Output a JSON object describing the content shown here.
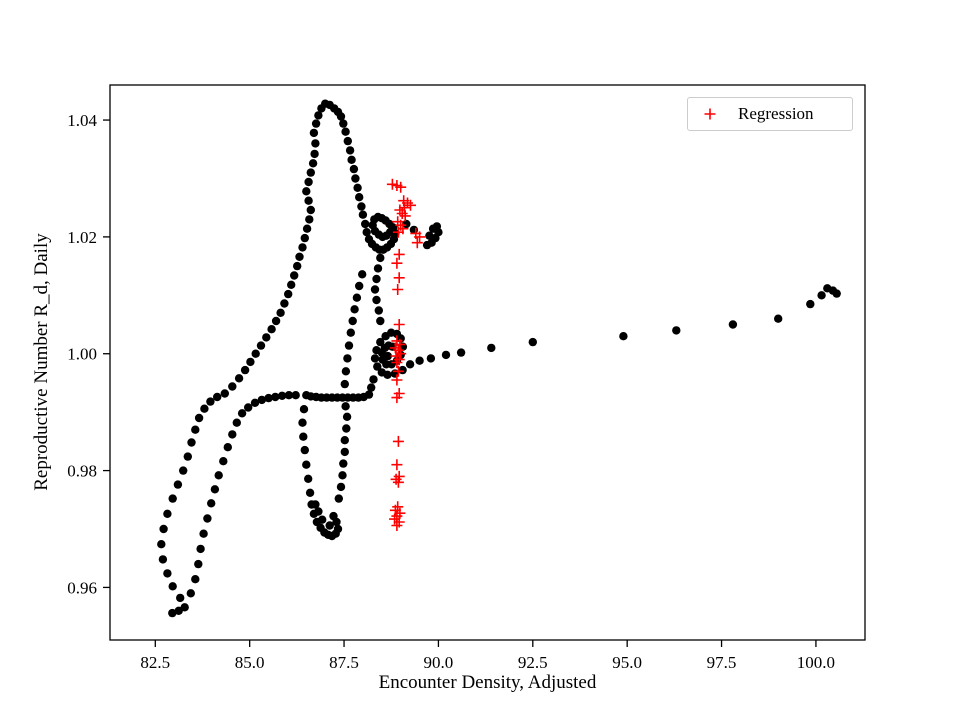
{
  "figure": {
    "background": "#ffffff",
    "frame_color": "#000000"
  },
  "chart_data": {
    "type": "scatter",
    "title": "",
    "xlabel": "Encounter Density, Adjusted",
    "ylabel": "Reproductive Number R_d, Daily",
    "xlim": [
      81.3,
      101.3
    ],
    "ylim": [
      0.951,
      1.046
    ],
    "grid": false,
    "x_ticks": [
      {
        "value": 82.5,
        "label": "82.5"
      },
      {
        "value": 85.0,
        "label": "85.0"
      },
      {
        "value": 87.5,
        "label": "87.5"
      },
      {
        "value": 90.0,
        "label": "90.0"
      },
      {
        "value": 92.5,
        "label": "92.5"
      },
      {
        "value": 95.0,
        "label": "95.0"
      },
      {
        "value": 97.5,
        "label": "97.5"
      },
      {
        "value": 100.0,
        "label": "100.0"
      }
    ],
    "y_ticks": [
      {
        "value": 0.96,
        "label": "0.96"
      },
      {
        "value": 0.98,
        "label": "0.98"
      },
      {
        "value": 1.0,
        "label": "1.00"
      },
      {
        "value": 1.02,
        "label": "1.02"
      },
      {
        "value": 1.04,
        "label": "1.04"
      }
    ],
    "legend": {
      "position": "upper right",
      "entries": [
        {
          "label": "Regression",
          "marker": "plus",
          "color": "#ff0000"
        }
      ]
    },
    "series": [
      {
        "name": "trajectory",
        "marker": "circle",
        "color": "#000000",
        "points": [
          [
            100.55,
            1.0103
          ],
          [
            100.45,
            1.0108
          ],
          [
            100.3,
            1.0112
          ],
          [
            100.15,
            1.01
          ],
          [
            99.85,
            1.0085
          ],
          [
            99.0,
            1.006
          ],
          [
            97.8,
            1.005
          ],
          [
            96.3,
            1.004
          ],
          [
            94.9,
            1.003
          ],
          [
            92.5,
            1.002
          ],
          [
            91.4,
            1.001
          ],
          [
            90.6,
            1.0002
          ],
          [
            90.2,
            0.9998
          ],
          [
            89.8,
            0.9992
          ],
          [
            89.5,
            0.9988
          ],
          [
            89.25,
            0.9982
          ],
          [
            89.05,
            0.9972
          ],
          [
            88.85,
            0.9966
          ],
          [
            88.65,
            0.9964
          ],
          [
            88.5,
            0.9968
          ],
          [
            88.38,
            0.9978
          ],
          [
            88.32,
            0.9992
          ],
          [
            88.36,
            1.0006
          ],
          [
            88.46,
            1.002
          ],
          [
            88.6,
            1.003
          ],
          [
            88.75,
            1.0036
          ],
          [
            88.9,
            1.0034
          ],
          [
            89.0,
            1.0026
          ],
          [
            89.06,
            1.0012
          ],
          [
            89.0,
            0.9998
          ],
          [
            88.9,
            0.9988
          ],
          [
            88.76,
            0.9982
          ],
          [
            88.62,
            0.9982
          ],
          [
            88.52,
            0.999
          ],
          [
            88.5,
            1.0002
          ],
          [
            88.58,
            1.001
          ],
          [
            88.68,
            1.0014
          ],
          [
            88.78,
            1.0012
          ],
          [
            88.66,
            0.9996
          ],
          [
            88.28,
            0.9956
          ],
          [
            88.22,
            0.9942
          ],
          [
            88.16,
            0.993
          ],
          [
            88.02,
            0.9926
          ],
          [
            87.88,
            0.9925
          ],
          [
            87.74,
            0.9925
          ],
          [
            87.6,
            0.9925
          ],
          [
            87.46,
            0.9925
          ],
          [
            87.32,
            0.9925
          ],
          [
            87.18,
            0.9925
          ],
          [
            87.04,
            0.9925
          ],
          [
            86.9,
            0.9925
          ],
          [
            86.76,
            0.9926
          ],
          [
            86.62,
            0.9927
          ],
          [
            86.5,
            0.9929
          ],
          [
            86.44,
            0.9905
          ],
          [
            86.4,
            0.9882
          ],
          [
            86.42,
            0.9858
          ],
          [
            86.46,
            0.9835
          ],
          [
            86.5,
            0.981
          ],
          [
            86.55,
            0.9786
          ],
          [
            86.6,
            0.9762
          ],
          [
            86.64,
            0.9742
          ],
          [
            86.7,
            0.9726
          ],
          [
            86.78,
            0.9712
          ],
          [
            86.88,
            0.9702
          ],
          [
            86.98,
            0.9694
          ],
          [
            87.08,
            0.969
          ],
          [
            87.18,
            0.9688
          ],
          [
            87.28,
            0.9692
          ],
          [
            87.34,
            0.97
          ],
          [
            87.3,
            0.9712
          ],
          [
            87.22,
            0.9722
          ],
          [
            87.12,
            0.9706
          ],
          [
            86.92,
            0.9716
          ],
          [
            86.82,
            0.973
          ],
          [
            86.74,
            0.9742
          ],
          [
            87.36,
            0.9752
          ],
          [
            87.42,
            0.9772
          ],
          [
            87.46,
            0.9792
          ],
          [
            87.48,
            0.9812
          ],
          [
            87.52,
            0.9832
          ],
          [
            87.52,
            0.9852
          ],
          [
            87.56,
            0.9872
          ],
          [
            87.58,
            0.9892
          ],
          [
            87.54,
            0.991
          ],
          [
            82.95,
            0.9556
          ],
          [
            83.12,
            0.956
          ],
          [
            83.28,
            0.9566
          ],
          [
            83.16,
            0.9582
          ],
          [
            82.96,
            0.9602
          ],
          [
            82.82,
            0.9624
          ],
          [
            82.7,
            0.9648
          ],
          [
            82.66,
            0.9674
          ],
          [
            82.72,
            0.97
          ],
          [
            82.82,
            0.9726
          ],
          [
            82.96,
            0.9752
          ],
          [
            83.1,
            0.9776
          ],
          [
            83.24,
            0.98
          ],
          [
            83.36,
            0.9824
          ],
          [
            83.46,
            0.9848
          ],
          [
            83.56,
            0.987
          ],
          [
            83.66,
            0.989
          ],
          [
            83.8,
            0.9906
          ],
          [
            83.96,
            0.9918
          ],
          [
            84.14,
            0.9926
          ],
          [
            84.34,
            0.9932
          ],
          [
            84.54,
            0.9944
          ],
          [
            84.72,
            0.9958
          ],
          [
            84.88,
            0.9972
          ],
          [
            85.02,
            0.9986
          ],
          [
            85.16,
            1.0
          ],
          [
            85.3,
            1.0014
          ],
          [
            85.44,
            1.0028
          ],
          [
            85.58,
            1.0042
          ],
          [
            85.7,
            1.0056
          ],
          [
            85.82,
            1.007
          ],
          [
            85.92,
            1.0086
          ],
          [
            86.02,
            1.0102
          ],
          [
            86.1,
            1.0118
          ],
          [
            86.18,
            1.0134
          ],
          [
            86.26,
            1.015
          ],
          [
            86.32,
            1.0166
          ],
          [
            86.4,
            1.0182
          ],
          [
            86.46,
            1.0198
          ],
          [
            86.52,
            1.0214
          ],
          [
            86.58,
            1.023
          ],
          [
            86.62,
            1.0246
          ],
          [
            86.56,
            1.0262
          ],
          [
            86.5,
            1.0278
          ],
          [
            86.56,
            1.0294
          ],
          [
            86.62,
            1.031
          ],
          [
            86.68,
            1.0326
          ],
          [
            86.72,
            1.0342
          ],
          [
            86.74,
            1.036
          ],
          [
            86.7,
            1.0378
          ],
          [
            86.76,
            1.0394
          ],
          [
            86.82,
            1.0408
          ],
          [
            86.9,
            1.042
          ],
          [
            87.0,
            1.0428
          ],
          [
            87.12,
            1.0426
          ],
          [
            87.24,
            1.042
          ],
          [
            87.34,
            1.0414
          ],
          [
            87.42,
            1.0406
          ],
          [
            87.48,
            1.0394
          ],
          [
            87.54,
            1.038
          ],
          [
            87.6,
            1.0364
          ],
          [
            87.66,
            1.0348
          ],
          [
            87.7,
            1.0332
          ],
          [
            87.76,
            1.0316
          ],
          [
            87.8,
            1.03
          ],
          [
            87.86,
            1.0284
          ],
          [
            87.9,
            1.0268
          ],
          [
            87.96,
            1.0252
          ],
          [
            88.0,
            1.0238
          ],
          [
            88.06,
            1.0222
          ],
          [
            88.1,
            1.0208
          ],
          [
            88.16,
            1.0196
          ],
          [
            88.24,
            1.0188
          ],
          [
            88.34,
            1.0182
          ],
          [
            88.44,
            1.0178
          ],
          [
            88.54,
            1.0178
          ],
          [
            88.64,
            1.0182
          ],
          [
            88.74,
            1.0188
          ],
          [
            88.82,
            1.0196
          ],
          [
            88.86,
            1.0206
          ],
          [
            88.8,
            1.0216
          ],
          [
            88.7,
            1.0222
          ],
          [
            88.6,
            1.0228
          ],
          [
            88.5,
            1.0232
          ],
          [
            88.4,
            1.0234
          ],
          [
            88.3,
            1.023
          ],
          [
            88.26,
            1.022
          ],
          [
            88.32,
            1.021
          ],
          [
            88.42,
            1.0204
          ],
          [
            88.52,
            1.02
          ],
          [
            88.62,
            1.0202
          ],
          [
            88.72,
            1.0208
          ],
          [
            88.78,
            1.0214
          ],
          [
            89.15,
            1.0222
          ],
          [
            89.35,
            1.0212
          ],
          [
            89.7,
            1.0186
          ],
          [
            89.82,
            1.019
          ],
          [
            89.92,
            1.0198
          ],
          [
            90.0,
            1.0208
          ],
          [
            89.96,
            1.0218
          ],
          [
            89.86,
            1.0214
          ],
          [
            89.76,
            1.0202
          ],
          [
            88.46,
            1.0164
          ],
          [
            88.4,
            1.0146
          ],
          [
            88.36,
            1.0128
          ],
          [
            88.32,
            1.011
          ],
          [
            88.36,
            1.0092
          ],
          [
            88.42,
            1.0074
          ],
          [
            88.46,
            1.0056
          ],
          [
            87.98,
            1.0136
          ],
          [
            87.9,
            1.0116
          ],
          [
            87.84,
            1.0096
          ],
          [
            87.78,
            1.0076
          ],
          [
            87.73,
            1.0056
          ],
          [
            87.68,
            1.0036
          ],
          [
            87.63,
            1.0014
          ],
          [
            87.59,
            0.9992
          ],
          [
            87.55,
            0.997
          ],
          [
            87.52,
            0.9948
          ],
          [
            83.44,
            0.959
          ],
          [
            83.56,
            0.9614
          ],
          [
            83.64,
            0.964
          ],
          [
            83.7,
            0.9666
          ],
          [
            83.78,
            0.9692
          ],
          [
            83.88,
            0.9718
          ],
          [
            83.98,
            0.9744
          ],
          [
            84.08,
            0.9768
          ],
          [
            84.18,
            0.9792
          ],
          [
            84.3,
            0.9816
          ],
          [
            84.42,
            0.984
          ],
          [
            84.54,
            0.9862
          ],
          [
            84.66,
            0.9882
          ],
          [
            84.8,
            0.9898
          ],
          [
            84.96,
            0.9908
          ],
          [
            85.14,
            0.9916
          ],
          [
            85.32,
            0.9921
          ],
          [
            85.5,
            0.9924
          ],
          [
            85.68,
            0.9926
          ],
          [
            85.86,
            0.9928
          ],
          [
            86.04,
            0.9929
          ],
          [
            86.22,
            0.9929
          ]
        ]
      },
      {
        "name": "Regression",
        "marker": "plus",
        "color": "#ff0000",
        "points": [
          [
            88.78,
            1.029
          ],
          [
            88.9,
            1.0288
          ],
          [
            89.0,
            1.0285
          ],
          [
            89.08,
            1.0262
          ],
          [
            89.18,
            1.0258
          ],
          [
            89.26,
            1.0254
          ],
          [
            89.1,
            1.025
          ],
          [
            88.98,
            1.0246
          ],
          [
            89.04,
            1.024
          ],
          [
            89.12,
            1.0236
          ],
          [
            88.92,
            1.0226
          ],
          [
            89.0,
            1.022
          ],
          [
            89.06,
            1.0214
          ],
          [
            88.94,
            1.0208
          ],
          [
            89.4,
            1.0206
          ],
          [
            89.5,
            1.02
          ],
          [
            89.44,
            1.019
          ],
          [
            88.96,
            1.017
          ],
          [
            88.9,
            1.0155
          ],
          [
            88.96,
            1.013
          ],
          [
            88.92,
            1.011
          ],
          [
            88.96,
            1.005
          ],
          [
            88.9,
            1.0022
          ],
          [
            88.98,
            1.0016
          ],
          [
            88.86,
            1.001
          ],
          [
            88.94,
            1.0006
          ],
          [
            89.0,
            1.0
          ],
          [
            88.88,
            0.9996
          ],
          [
            88.96,
            0.999
          ],
          [
            88.9,
            0.9985
          ],
          [
            88.94,
            0.997
          ],
          [
            88.9,
            0.9955
          ],
          [
            88.96,
            0.9932
          ],
          [
            88.9,
            0.9925
          ],
          [
            88.94,
            0.985
          ],
          [
            88.9,
            0.981
          ],
          [
            88.96,
            0.979
          ],
          [
            88.88,
            0.9785
          ],
          [
            88.94,
            0.978
          ],
          [
            88.92,
            0.9738
          ],
          [
            88.86,
            0.9732
          ],
          [
            88.98,
            0.9727
          ],
          [
            88.9,
            0.9722
          ],
          [
            88.84,
            0.9717
          ],
          [
            88.96,
            0.9712
          ],
          [
            88.9,
            0.9706
          ]
        ]
      }
    ]
  }
}
